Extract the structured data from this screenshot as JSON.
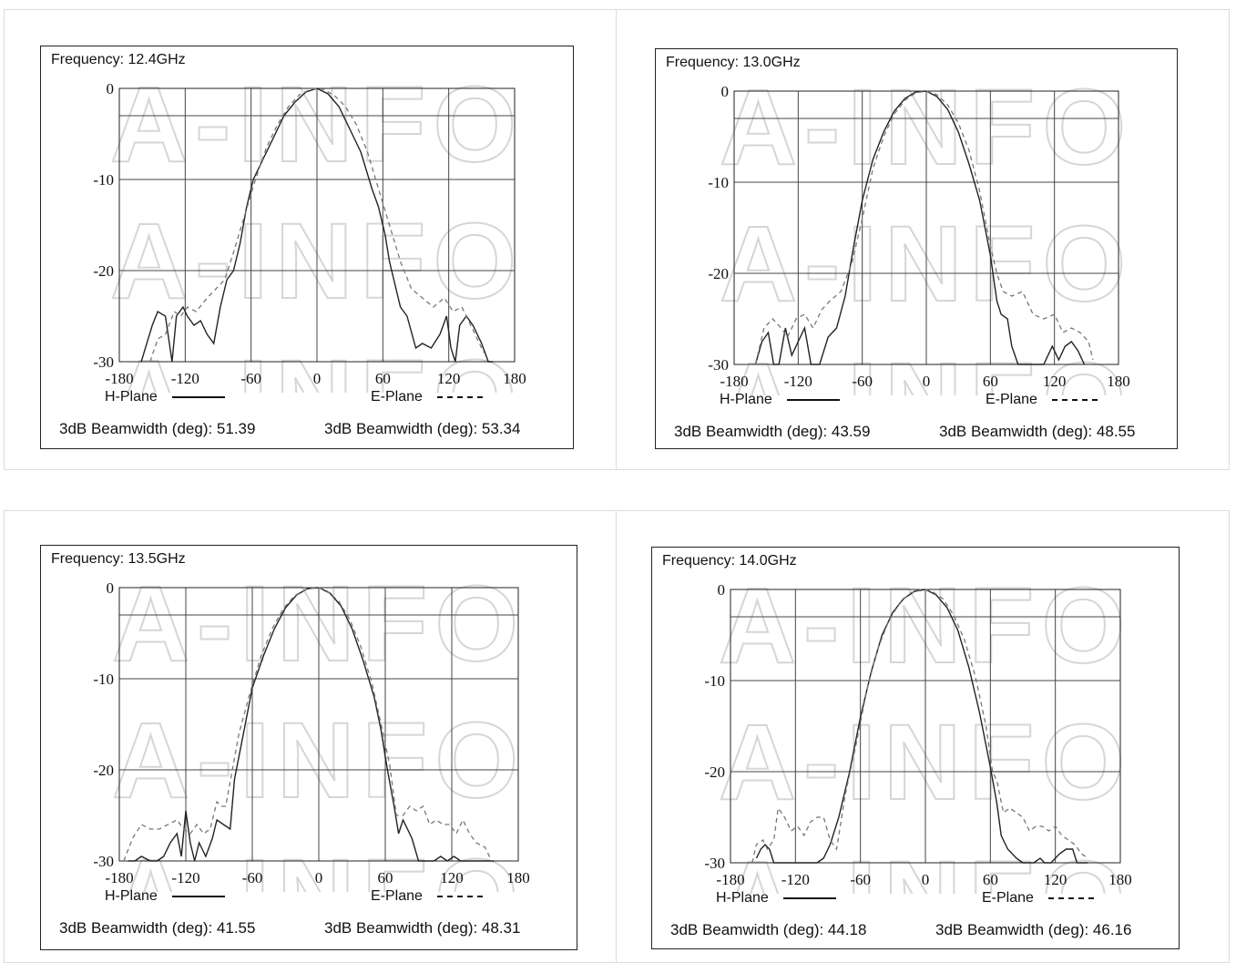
{
  "watermark": "A-INFO",
  "charts": [
    {
      "frequency_label": "Frequency: 12.4GHz",
      "h_legend": "H-Plane",
      "e_legend": "E-Plane",
      "h_beamwidth": "3dB Beamwidth (deg): 51.39",
      "e_beamwidth": "3dB Beamwidth (deg): 53.34"
    },
    {
      "frequency_label": "Frequency: 13.0GHz",
      "h_legend": "H-Plane",
      "e_legend": "E-Plane",
      "h_beamwidth": "3dB Beamwidth (deg): 43.59",
      "e_beamwidth": "3dB Beamwidth (deg): 48.55"
    },
    {
      "frequency_label": "Frequency: 13.5GHz",
      "h_legend": "H-Plane",
      "e_legend": "E-Plane",
      "h_beamwidth": "3dB Beamwidth (deg): 41.55",
      "e_beamwidth": "3dB Beamwidth (deg): 48.31"
    },
    {
      "frequency_label": "Frequency: 14.0GHz",
      "h_legend": "H-Plane",
      "e_legend": "E-Plane",
      "h_beamwidth": "3dB Beamwidth (deg): 44.18",
      "e_beamwidth": "3dB Beamwidth (deg): 46.16"
    }
  ],
  "chart_data": [
    {
      "type": "line",
      "title": "Frequency: 12.4GHz",
      "xlim": [
        -180,
        180
      ],
      "ylim": [
        -30,
        0
      ],
      "xticks": [
        "-180",
        "-120",
        "-60",
        "0",
        "60",
        "120",
        "180"
      ],
      "yticks": [
        "0",
        "-10",
        "-20",
        "-30"
      ],
      "grid": true,
      "series": [
        {
          "name": "H-Plane",
          "style": "solid",
          "x": [
            -160,
            -150,
            -145,
            -138,
            -132,
            -128,
            -122,
            -118,
            -112,
            -106,
            -100,
            -94,
            -88,
            -82,
            -76,
            -70,
            -64,
            -58,
            -50,
            -40,
            -30,
            -20,
            -10,
            0,
            10,
            20,
            30,
            40,
            50,
            56,
            62,
            66,
            70,
            76,
            82,
            90,
            96,
            104,
            112,
            118,
            122,
            126,
            130,
            136,
            142,
            150,
            156,
            160
          ],
          "y": [
            -30,
            -26,
            -24.5,
            -25,
            -30,
            -25,
            -24,
            -25,
            -26,
            -25.5,
            -27,
            -28,
            -24,
            -21,
            -20,
            -17,
            -13,
            -10,
            -8,
            -5.5,
            -3,
            -1.5,
            -0.4,
            0,
            -0.6,
            -2,
            -4.5,
            -7,
            -11,
            -13,
            -16,
            -19,
            -21,
            -24,
            -25,
            -28.5,
            -28,
            -28.5,
            -27,
            -25,
            -28.5,
            -30,
            -26,
            -25,
            -26,
            -28,
            -30,
            -30
          ]
        },
        {
          "name": "E-Plane",
          "style": "dashed",
          "x": [
            -152,
            -145,
            -138,
            -130,
            -124,
            -118,
            -110,
            -100,
            -92,
            -84,
            -76,
            -66,
            -56,
            -46,
            -36,
            -26,
            -16,
            -6,
            0,
            6,
            16,
            26,
            36,
            46,
            56,
            66,
            76,
            86,
            96,
            106,
            116,
            124,
            132,
            140,
            146,
            152
          ],
          "y": [
            -30,
            -27.5,
            -27,
            -24.5,
            -25,
            -24,
            -24.5,
            -23,
            -22,
            -21,
            -18,
            -14,
            -10,
            -6.5,
            -4,
            -2,
            -0.7,
            -0.1,
            0,
            -0.1,
            -0.8,
            -2,
            -4,
            -7,
            -11,
            -15,
            -19,
            -22,
            -23,
            -24,
            -23,
            -24.5,
            -24,
            -26,
            -27.5,
            -29
          ]
        }
      ]
    },
    {
      "type": "line",
      "title": "Frequency: 13.0GHz",
      "xlim": [
        -180,
        180
      ],
      "ylim": [
        -30,
        0
      ],
      "xticks": [
        "-180",
        "-120",
        "-60",
        "0",
        "60",
        "120",
        "180"
      ],
      "yticks": [
        "0",
        "-10",
        "-20",
        "-30"
      ],
      "grid": true,
      "series": [
        {
          "name": "H-Plane",
          "style": "solid",
          "x": [
            -160,
            -154,
            -148,
            -143,
            -138,
            -132,
            -126,
            -120,
            -114,
            -108,
            -100,
            -92,
            -84,
            -76,
            -68,
            -60,
            -50,
            -40,
            -30,
            -20,
            -10,
            0,
            10,
            20,
            30,
            40,
            50,
            60,
            66,
            70,
            76,
            80,
            86,
            92,
            100,
            110,
            118,
            124,
            130,
            136,
            142,
            148
          ],
          "y": [
            -30,
            -27.5,
            -26.5,
            -30,
            -30,
            -26,
            -29,
            -27.5,
            -26,
            -30,
            -30,
            -27,
            -26,
            -22.5,
            -17,
            -12,
            -7.5,
            -4.5,
            -2.2,
            -0.8,
            -0.1,
            0,
            -0.6,
            -2,
            -4.5,
            -8,
            -12,
            -18,
            -23,
            -24.5,
            -25,
            -28,
            -30,
            -30,
            -30,
            -30,
            -28,
            -29.5,
            -28,
            -27.5,
            -28.5,
            -30
          ]
        },
        {
          "name": "E-Plane",
          "style": "dashed",
          "x": [
            -160,
            -152,
            -144,
            -136,
            -130,
            -122,
            -114,
            -106,
            -98,
            -90,
            -80,
            -70,
            -60,
            -50,
            -40,
            -30,
            -20,
            -10,
            0,
            10,
            20,
            30,
            40,
            50,
            60,
            66,
            72,
            80,
            90,
            100,
            110,
            120,
            128,
            136,
            144,
            152,
            156
          ],
          "y": [
            -30,
            -26,
            -25,
            -26,
            -27,
            -25,
            -24.5,
            -26,
            -24,
            -23,
            -22,
            -19,
            -14,
            -8.5,
            -5,
            -2.5,
            -1,
            -0.2,
            0,
            -0.4,
            -1.5,
            -3.5,
            -6.5,
            -11,
            -17,
            -20,
            -22,
            -22.5,
            -22,
            -24.5,
            -25,
            -24.5,
            -26.5,
            -26,
            -26.5,
            -27.5,
            -29.5
          ]
        }
      ]
    },
    {
      "type": "line",
      "title": "Frequency: 13.5GHz",
      "xlim": [
        -180,
        180
      ],
      "ylim": [
        -30,
        0
      ],
      "xticks": [
        "-180",
        "-120",
        "-60",
        "0",
        "60",
        "120",
        "180"
      ],
      "yticks": [
        "0",
        "-10",
        "-20",
        "-30"
      ],
      "grid": true,
      "series": [
        {
          "name": "H-Plane",
          "style": "solid",
          "x": [
            -172,
            -166,
            -160,
            -152,
            -146,
            -140,
            -134,
            -128,
            -124,
            -120,
            -116,
            -112,
            -108,
            -102,
            -96,
            -92,
            -86,
            -80,
            -76,
            -68,
            -60,
            -50,
            -40,
            -30,
            -20,
            -10,
            0,
            10,
            20,
            30,
            40,
            50,
            56,
            62,
            68,
            72,
            76,
            84,
            90,
            96,
            104,
            110,
            116,
            122,
            128,
            136,
            144,
            152,
            158
          ],
          "y": [
            -30,
            -30,
            -29.5,
            -30,
            -30,
            -29.5,
            -28,
            -27,
            -29.5,
            -24.5,
            -28,
            -30,
            -28,
            -29.5,
            -27.5,
            -25.5,
            -26,
            -26.5,
            -21,
            -16,
            -11,
            -7.5,
            -4.5,
            -2.2,
            -0.8,
            -0.1,
            0,
            -0.6,
            -2,
            -4.5,
            -8,
            -12,
            -15.5,
            -20,
            -24,
            -27,
            -25.5,
            -27.5,
            -30,
            -30,
            -30,
            -29.5,
            -30,
            -29.5,
            -30,
            -30,
            -30,
            -30,
            -30
          ]
        },
        {
          "name": "E-Plane",
          "style": "dashed",
          "x": [
            -176,
            -168,
            -160,
            -152,
            -144,
            -136,
            -128,
            -122,
            -116,
            -110,
            -104,
            -98,
            -92,
            -88,
            -84,
            -78,
            -72,
            -62,
            -52,
            -42,
            -32,
            -22,
            -12,
            -2,
            0,
            8,
            18,
            28,
            38,
            48,
            58,
            64,
            70,
            76,
            82,
            88,
            94,
            100,
            106,
            112,
            118,
            124,
            130,
            136,
            142,
            150,
            156
          ],
          "y": [
            -30,
            -27.5,
            -26,
            -26.5,
            -26.5,
            -26,
            -25.5,
            -26.5,
            -27,
            -26,
            -27,
            -26.5,
            -23.5,
            -24,
            -24,
            -20,
            -16,
            -11.5,
            -7.5,
            -4.5,
            -2.3,
            -0.9,
            -0.2,
            0,
            0,
            -0.4,
            -1.5,
            -3.5,
            -6.5,
            -10.5,
            -16,
            -19.5,
            -25,
            -25,
            -24,
            -24.5,
            -24,
            -26,
            -25.5,
            -26,
            -26,
            -27,
            -25.5,
            -27,
            -28,
            -28.5,
            -30
          ]
        }
      ]
    },
    {
      "type": "line",
      "title": "Frequency: 14.0GHz",
      "xlim": [
        -180,
        180
      ],
      "ylim": [
        -30,
        0
      ],
      "xticks": [
        "-180",
        "-120",
        "-60",
        "0",
        "60",
        "120",
        "180"
      ],
      "yticks": [
        "0",
        "-10",
        "-20",
        "-30"
      ],
      "grid": true,
      "series": [
        {
          "name": "H-Plane",
          "style": "solid",
          "x": [
            -156,
            -152,
            -148,
            -144,
            -140,
            -100,
            -94,
            -88,
            -80,
            -70,
            -60,
            -50,
            -40,
            -30,
            -20,
            -10,
            0,
            10,
            20,
            30,
            40,
            50,
            60,
            66,
            70,
            76,
            84,
            90,
            100,
            106,
            110,
            116,
            120,
            124,
            130,
            136,
            140,
            150
          ],
          "y": [
            -29.5,
            -28.5,
            -28,
            -28.5,
            -30,
            -30,
            -29.5,
            -28,
            -25,
            -20,
            -14,
            -9,
            -5,
            -2.5,
            -1,
            -0.2,
            0,
            -0.6,
            -2,
            -4.5,
            -8.5,
            -13.5,
            -19.5,
            -23.5,
            -27,
            -28.5,
            -29.5,
            -30,
            -30,
            -29.5,
            -30,
            -30,
            -29.5,
            -29,
            -28.5,
            -28.5,
            -30,
            -30
          ]
        },
        {
          "name": "E-Plane",
          "style": "dashed",
          "x": [
            -160,
            -156,
            -150,
            -146,
            -140,
            -136,
            -130,
            -124,
            -118,
            -112,
            -106,
            -100,
            -94,
            -88,
            -82,
            -74,
            -64,
            -54,
            -44,
            -34,
            -24,
            -14,
            -4,
            0,
            6,
            16,
            26,
            36,
            46,
            56,
            62,
            66,
            72,
            78,
            84,
            90,
            96,
            102,
            108,
            114,
            120,
            126,
            132,
            138,
            144,
            150
          ],
          "y": [
            -30,
            -28,
            -27.5,
            -28.5,
            -27.5,
            -24,
            -25,
            -26.5,
            -26,
            -27,
            -25.5,
            -25,
            -25,
            -27.5,
            -28.5,
            -22.5,
            -17,
            -11,
            -6.5,
            -3.5,
            -1.5,
            -0.4,
            0,
            0,
            -0.2,
            -1,
            -2.8,
            -5.5,
            -9.5,
            -15,
            -20,
            -21,
            -24.5,
            -24,
            -24.5,
            -25,
            -26.5,
            -26,
            -26,
            -26.5,
            -26,
            -27,
            -27.5,
            -28,
            -29,
            -29.5
          ]
        }
      ]
    }
  ]
}
